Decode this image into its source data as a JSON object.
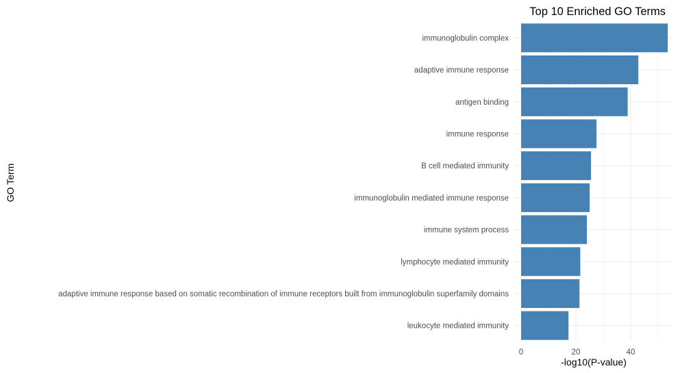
{
  "chart_data": {
    "type": "bar",
    "orientation": "horizontal",
    "title": "Top 10 Enriched GO Terms",
    "xlabel": "-log10(P-value)",
    "ylabel": "GO Term",
    "categories": [
      "immunoglobulin complex",
      "adaptive immune response",
      "antigen binding",
      "immune response",
      "B cell mediated immunity",
      "immunoglobulin mediated immune response",
      "immune system process",
      "lymphocyte mediated immunity",
      "adaptive immune response based on somatic recombination of immune receptors built from immunoglobulin superfamily domains",
      "leukocyte mediated immunity"
    ],
    "values": [
      53.5,
      42.8,
      38.9,
      27.5,
      25.5,
      25.0,
      24.0,
      21.6,
      21.3,
      17.3
    ],
    "xlim": [
      0,
      54
    ],
    "xticks": [
      0,
      20,
      40
    ],
    "grid": true,
    "bar_color": "#4682B4"
  }
}
